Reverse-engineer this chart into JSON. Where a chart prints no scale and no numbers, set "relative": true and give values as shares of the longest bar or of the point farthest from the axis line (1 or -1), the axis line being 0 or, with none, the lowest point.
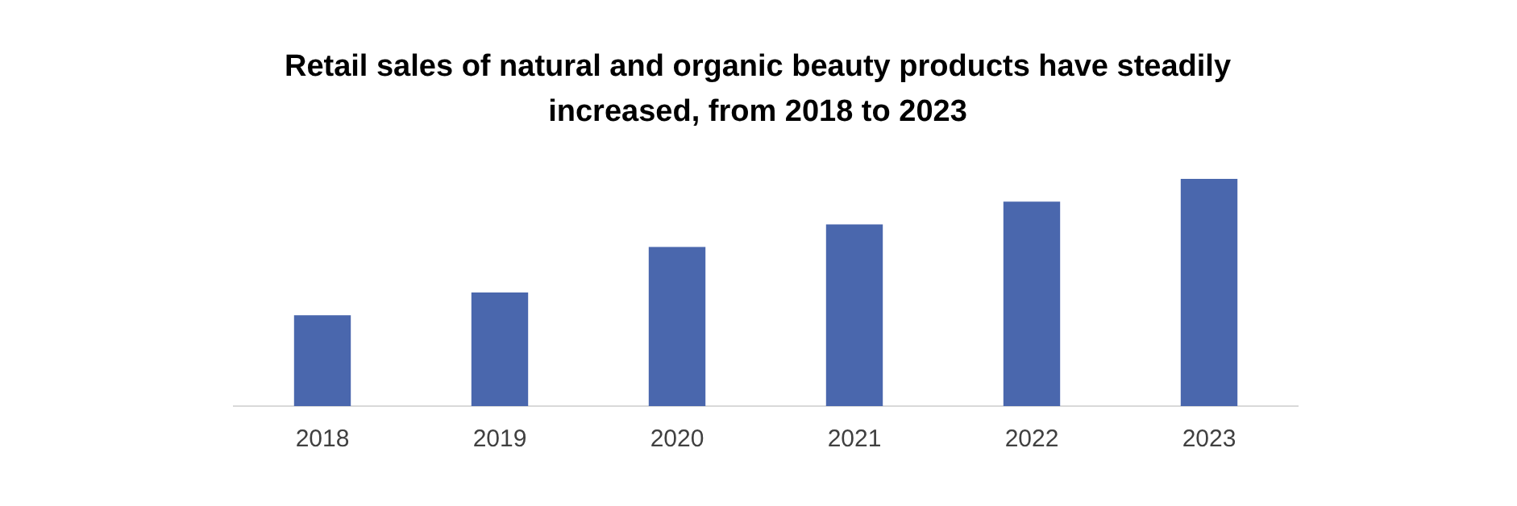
{
  "chart_data": {
    "type": "bar",
    "title": "Retail sales of natural and organic beauty products have steadily increased, from 2018 to 2023",
    "categories": [
      "2018",
      "2019",
      "2020",
      "2021",
      "2022",
      "2023"
    ],
    "values": [
      0.4,
      0.5,
      0.7,
      0.8,
      0.9,
      1
    ],
    "color": "#4a67ad",
    "relative": true,
    "grid": false,
    "legend": false
  }
}
